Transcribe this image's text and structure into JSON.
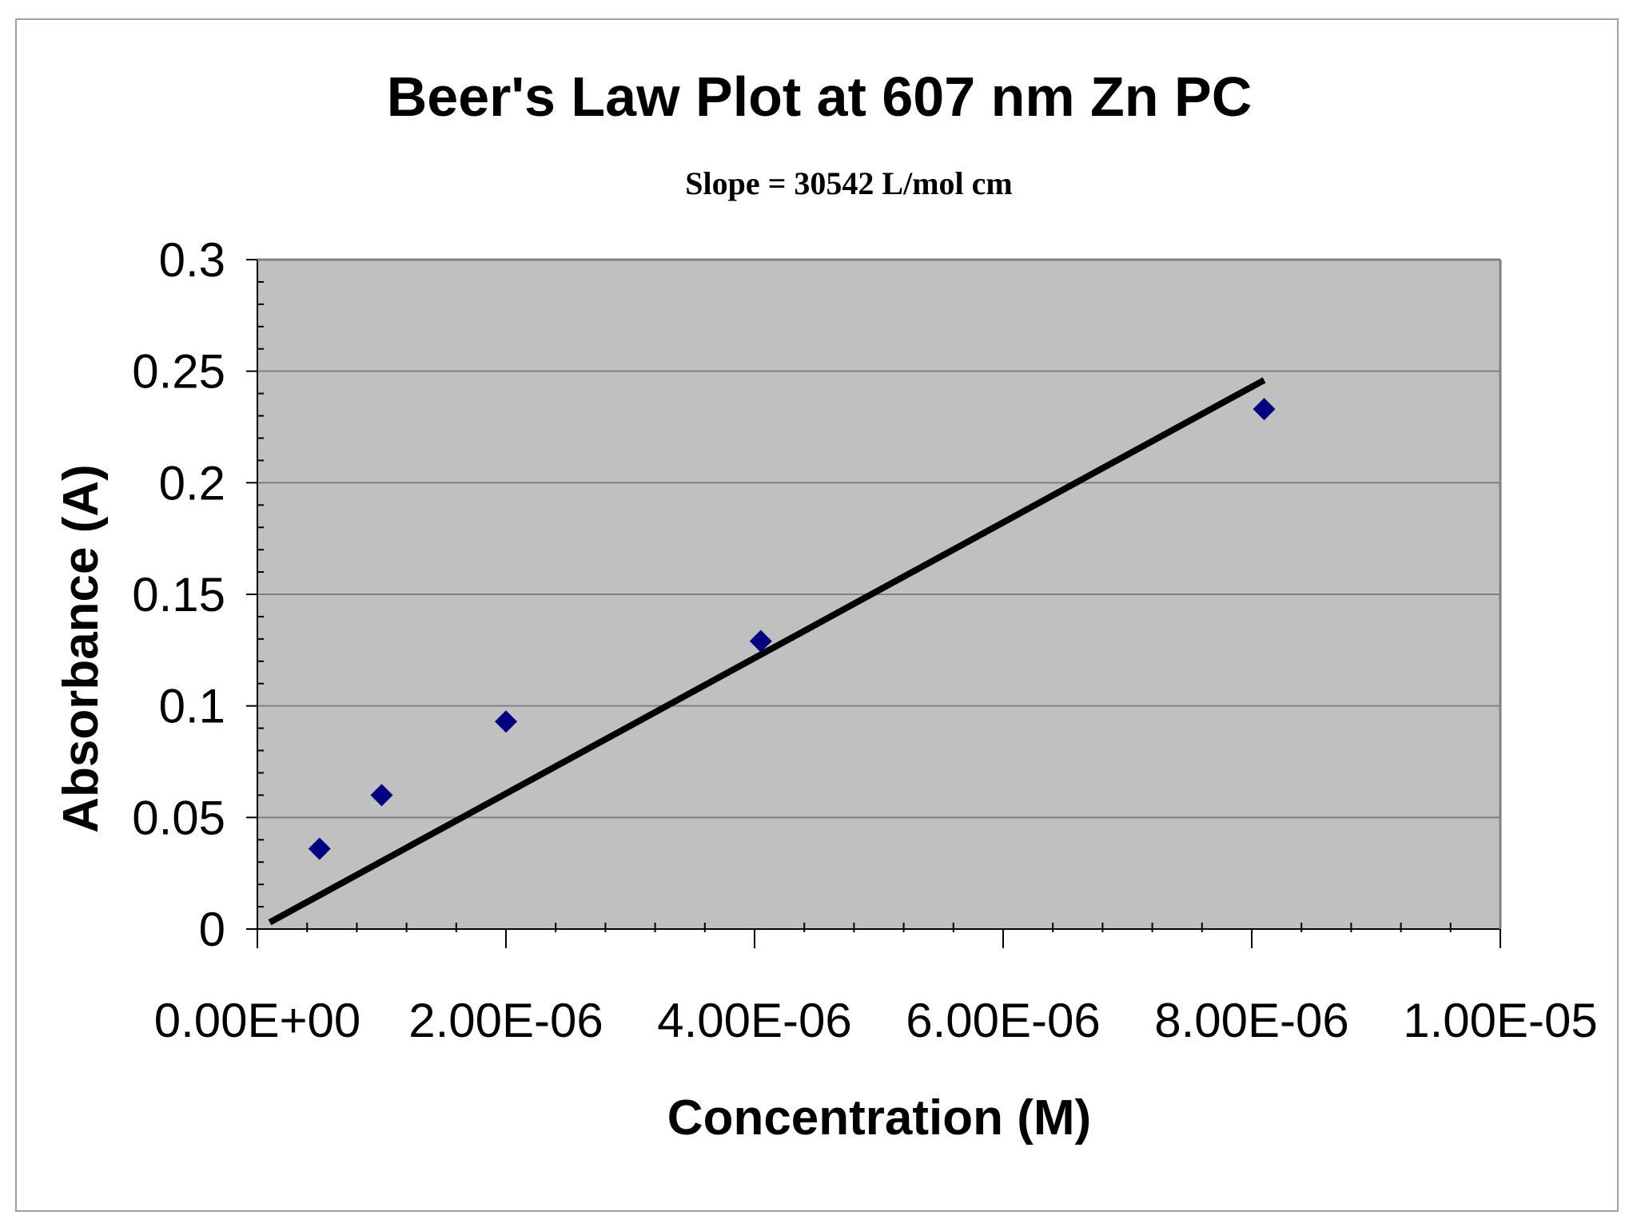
{
  "chart_data": {
    "type": "scatter",
    "title": "Beer's Law Plot at 607 nm Zn PC",
    "subtitle": "Slope = 30542 L/mol cm",
    "xlabel": "Concentration (M)",
    "ylabel": "Absorbance (A)",
    "xlim": [
      0,
      1e-05
    ],
    "ylim": [
      0,
      0.3
    ],
    "x_ticks": [
      0,
      2e-06,
      4e-06,
      6e-06,
      8e-06,
      1e-05
    ],
    "x_tick_labels": [
      "0.00E+00",
      "2.00E-06",
      "4.00E-06",
      "6.00E-06",
      "8.00E-06",
      "1.00E-05"
    ],
    "y_ticks": [
      0,
      0.05,
      0.1,
      0.15,
      0.2,
      0.25,
      0.3
    ],
    "y_tick_labels": [
      "0",
      "0.05",
      "0.1",
      "0.15",
      "0.2",
      "0.25",
      "0.3"
    ],
    "points": [
      {
        "x": 5e-07,
        "y": 0.036
      },
      {
        "x": 1e-06,
        "y": 0.06
      },
      {
        "x": 2e-06,
        "y": 0.093
      },
      {
        "x": 4.05e-06,
        "y": 0.129
      },
      {
        "x": 8.1e-06,
        "y": 0.233
      }
    ],
    "trendline": {
      "x": [
        1e-07,
        8.1e-06
      ],
      "y": [
        0.003,
        0.246
      ]
    },
    "grid": "horizontal",
    "legend": "none",
    "colors": {
      "plot_background": "#c0c0c0",
      "marker": "#000080",
      "trendline": "#000000",
      "gridline": "#808080"
    }
  }
}
